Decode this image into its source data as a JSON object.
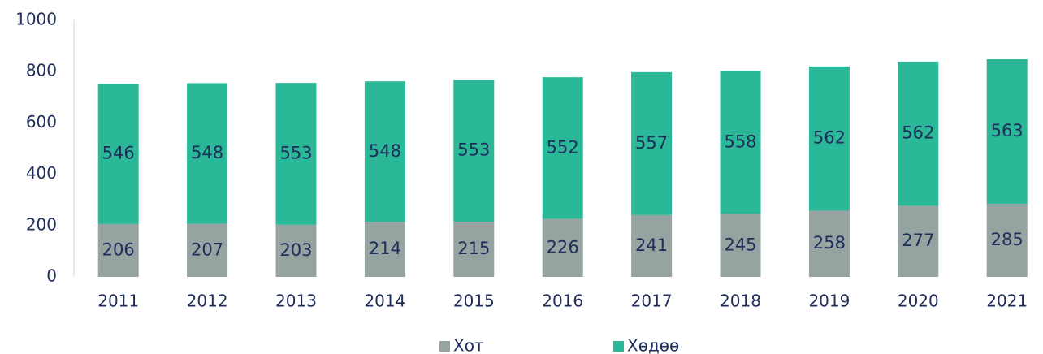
{
  "chart_data": {
    "type": "stacked_bar",
    "categories": [
      "2011",
      "2012",
      "2013",
      "2014",
      "2015",
      "2016",
      "2017",
      "2018",
      "2019",
      "2020",
      "2021"
    ],
    "series": [
      {
        "name": "Хот",
        "color": "#95a3a1",
        "values": [
          206,
          207,
          203,
          214,
          215,
          226,
          241,
          245,
          258,
          277,
          285
        ]
      },
      {
        "name": "Хөдөө",
        "color": "#2ab898",
        "values": [
          546,
          548,
          553,
          548,
          553,
          552,
          557,
          558,
          562,
          562,
          563
        ]
      }
    ],
    "ylim": [
      0,
      1000
    ],
    "yticks": [
      0,
      200,
      400,
      600,
      800,
      1000
    ],
    "grid": false,
    "legend": "bottom"
  }
}
